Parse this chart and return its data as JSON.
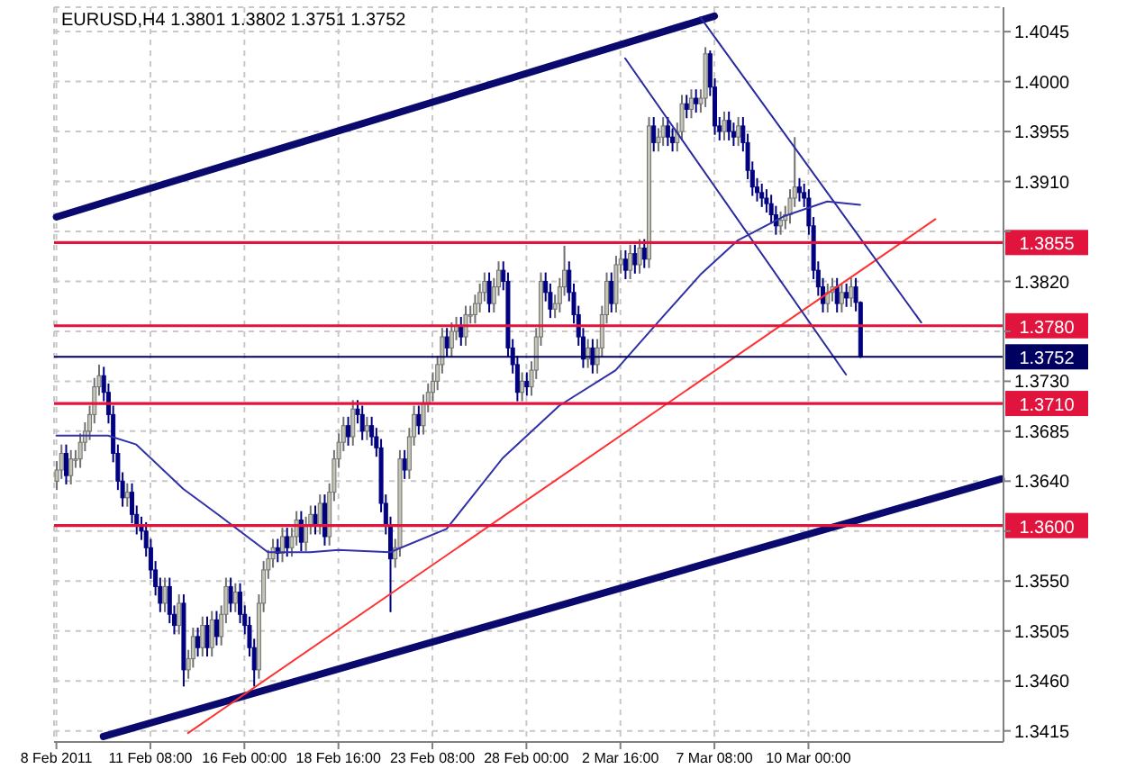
{
  "chart_data": {
    "type": "candlestick",
    "title": "EURUSD,H4 1.3801 1.3802 1.3751 1.3752",
    "categories": [
      "8 Feb 2011",
      null,
      null,
      null,
      null,
      null,
      null,
      null,
      null,
      null,
      null,
      null,
      null,
      null,
      null,
      null,
      null,
      null,
      null,
      null,
      "11 Feb 08:00",
      null,
      null,
      null,
      null,
      null,
      null,
      null,
      null,
      null,
      null,
      null,
      null,
      null,
      null,
      null,
      null,
      null,
      null,
      null,
      "16 Feb 00:00",
      null,
      null,
      null,
      null,
      null,
      null,
      null,
      null,
      null,
      null,
      null,
      null,
      null,
      null,
      null,
      null,
      null,
      null,
      null,
      "18 Feb 16:00",
      null,
      null,
      null,
      null,
      null,
      null,
      null,
      null,
      null,
      null,
      null,
      null,
      null,
      null,
      null,
      null,
      null,
      null,
      null,
      "23 Feb 08:00",
      null,
      null,
      null,
      null,
      null,
      null,
      null,
      null,
      null,
      null,
      null,
      null,
      null,
      null,
      null,
      null,
      null,
      null,
      null,
      "28 Feb 00:00",
      null,
      null,
      null,
      null,
      null,
      null,
      null,
      null,
      null,
      null,
      null,
      null,
      null,
      null,
      null,
      null,
      null,
      null,
      null,
      "2 Mar 16:00",
      null,
      null,
      null,
      null,
      null,
      null,
      null,
      null,
      null,
      null,
      null,
      null,
      null,
      null,
      null,
      null,
      null,
      null,
      null,
      "7 Mar 08:00",
      null,
      null,
      null,
      null,
      null,
      null,
      null,
      null,
      null,
      null,
      null,
      null,
      null,
      null,
      null,
      null,
      null,
      null,
      null,
      "10 Mar 00:00",
      null,
      null,
      null,
      null,
      null,
      null,
      null,
      null,
      null,
      null,
      null,
      null,
      null,
      null,
      null,
      null,
      null,
      null,
      null,
      null,
      null,
      null,
      null,
      null,
      null,
      null,
      null,
      null,
      null,
      null,
      null,
      null,
      null,
      null,
      null,
      null,
      null,
      null,
      null,
      null,
      null
    ],
    "ohlc": [
      [
        1.364,
        1.3658,
        1.3632,
        1.365
      ],
      [
        1.365,
        1.3673,
        1.3642,
        1.3665
      ],
      [
        1.3665,
        1.3673,
        1.3637,
        1.3645
      ],
      [
        1.3645,
        1.3668,
        1.3637,
        1.366
      ],
      [
        1.366,
        1.3668,
        1.3652,
        1.366
      ],
      [
        1.366,
        1.3683,
        1.3652,
        1.3675
      ],
      [
        1.3675,
        1.3693,
        1.3667,
        1.3685
      ],
      [
        1.3685,
        1.3708,
        1.3677,
        1.37
      ],
      [
        1.37,
        1.3733,
        1.3692,
        1.3725
      ],
      [
        1.3725,
        1.3745,
        1.3717,
        1.3735
      ],
      [
        1.3735,
        1.3743,
        1.3712,
        1.372
      ],
      [
        1.372,
        1.3728,
        1.3692,
        1.37
      ],
      [
        1.37,
        1.3708,
        1.3657,
        1.3665
      ],
      [
        1.3665,
        1.3673,
        1.3632,
        1.364
      ],
      [
        1.364,
        1.3648,
        1.3617,
        1.3625
      ],
      [
        1.3625,
        1.3638,
        1.3617,
        1.363
      ],
      [
        1.363,
        1.3638,
        1.3602,
        1.361
      ],
      [
        1.361,
        1.3618,
        1.3592,
        1.36
      ],
      [
        1.36,
        1.3608,
        1.3587,
        1.3595
      ],
      [
        1.3595,
        1.3603,
        1.3572,
        1.358
      ],
      [
        1.358,
        1.3588,
        1.3552,
        1.356
      ],
      [
        1.356,
        1.3568,
        1.3537,
        1.3545
      ],
      [
        1.3545,
        1.3553,
        1.3522,
        1.353
      ],
      [
        1.353,
        1.3553,
        1.3522,
        1.3545
      ],
      [
        1.3545,
        1.3553,
        1.3512,
        1.352
      ],
      [
        1.352,
        1.3528,
        1.3502,
        1.351
      ],
      [
        1.351,
        1.3538,
        1.3502,
        1.353
      ],
      [
        1.353,
        1.3538,
        1.3455,
        1.347
      ],
      [
        1.347,
        1.3488,
        1.3462,
        1.348
      ],
      [
        1.348,
        1.3508,
        1.3472,
        1.35
      ],
      [
        1.35,
        1.3508,
        1.3482,
        1.349
      ],
      [
        1.349,
        1.3518,
        1.3482,
        1.351
      ],
      [
        1.351,
        1.3518,
        1.3482,
        1.349
      ],
      [
        1.349,
        1.3523,
        1.3482,
        1.3515
      ],
      [
        1.3515,
        1.3523,
        1.3492,
        1.35
      ],
      [
        1.35,
        1.3528,
        1.3492,
        1.352
      ],
      [
        1.352,
        1.3553,
        1.3512,
        1.3545
      ],
      [
        1.3545,
        1.3553,
        1.3522,
        1.353
      ],
      [
        1.353,
        1.3548,
        1.3522,
        1.354
      ],
      [
        1.354,
        1.3548,
        1.3512,
        1.352
      ],
      [
        1.352,
        1.3528,
        1.3502,
        1.351
      ],
      [
        1.351,
        1.3518,
        1.3482,
        1.349
      ],
      [
        1.349,
        1.3498,
        1.3455,
        1.347
      ],
      [
        1.347,
        1.3538,
        1.3462,
        1.353
      ],
      [
        1.353,
        1.3568,
        1.3522,
        1.356
      ],
      [
        1.356,
        1.3578,
        1.3552,
        1.357
      ],
      [
        1.357,
        1.3588,
        1.3562,
        1.358
      ],
      [
        1.358,
        1.3588,
        1.3567,
        1.3575
      ],
      [
        1.3575,
        1.3598,
        1.3567,
        1.359
      ],
      [
        1.359,
        1.3598,
        1.3572,
        1.358
      ],
      [
        1.358,
        1.3598,
        1.3572,
        1.359
      ],
      [
        1.359,
        1.3613,
        1.3582,
        1.3605
      ],
      [
        1.3605,
        1.3613,
        1.3577,
        1.3585
      ],
      [
        1.3585,
        1.3608,
        1.3577,
        1.36
      ],
      [
        1.36,
        1.3618,
        1.3592,
        1.361
      ],
      [
        1.361,
        1.3618,
        1.3592,
        1.36
      ],
      [
        1.36,
        1.3628,
        1.3592,
        1.362
      ],
      [
        1.362,
        1.3628,
        1.3582,
        1.359
      ],
      [
        1.359,
        1.3638,
        1.3582,
        1.363
      ],
      [
        1.363,
        1.3668,
        1.3622,
        1.366
      ],
      [
        1.366,
        1.3683,
        1.3652,
        1.3675
      ],
      [
        1.3675,
        1.3698,
        1.3667,
        1.369
      ],
      [
        1.369,
        1.3698,
        1.3672,
        1.368
      ],
      [
        1.368,
        1.3713,
        1.3672,
        1.3705
      ],
      [
        1.3705,
        1.3713,
        1.3692,
        1.37
      ],
      [
        1.37,
        1.3708,
        1.3677,
        1.3685
      ],
      [
        1.3685,
        1.3698,
        1.3677,
        1.369
      ],
      [
        1.369,
        1.3698,
        1.3672,
        1.368
      ],
      [
        1.368,
        1.3688,
        1.3662,
        1.367
      ],
      [
        1.367,
        1.3678,
        1.3612,
        1.362
      ],
      [
        1.362,
        1.3628,
        1.3592,
        1.36
      ],
      [
        1.36,
        1.3608,
        1.3522,
        1.357
      ],
      [
        1.357,
        1.3588,
        1.3562,
        1.358
      ],
      [
        1.358,
        1.3668,
        1.3572,
        1.366
      ],
      [
        1.366,
        1.3668,
        1.3642,
        1.365
      ],
      [
        1.365,
        1.3688,
        1.3642,
        1.368
      ],
      [
        1.368,
        1.3708,
        1.3672,
        1.37
      ],
      [
        1.37,
        1.3708,
        1.3682,
        1.369
      ],
      [
        1.369,
        1.3718,
        1.3682,
        1.371
      ],
      [
        1.371,
        1.3728,
        1.3702,
        1.372
      ],
      [
        1.372,
        1.3738,
        1.3712,
        1.373
      ],
      [
        1.373,
        1.3753,
        1.3722,
        1.3745
      ],
      [
        1.3745,
        1.3778,
        1.3737,
        1.377
      ],
      [
        1.377,
        1.3778,
        1.3752,
        1.376
      ],
      [
        1.376,
        1.3783,
        1.3752,
        1.3775
      ],
      [
        1.3775,
        1.3788,
        1.3767,
        1.378
      ],
      [
        1.378,
        1.3788,
        1.3762,
        1.377
      ],
      [
        1.377,
        1.3798,
        1.3762,
        1.379
      ],
      [
        1.379,
        1.3798,
        1.3782,
        1.379
      ],
      [
        1.379,
        1.3808,
        1.3782,
        1.38
      ],
      [
        1.38,
        1.3818,
        1.3792,
        1.381
      ],
      [
        1.381,
        1.3828,
        1.3802,
        1.382
      ],
      [
        1.382,
        1.3828,
        1.3792,
        1.38
      ],
      [
        1.38,
        1.3823,
        1.3792,
        1.3815
      ],
      [
        1.3815,
        1.3838,
        1.3807,
        1.383
      ],
      [
        1.383,
        1.3838,
        1.3812,
        1.382
      ],
      [
        1.382,
        1.3828,
        1.3752,
        1.376
      ],
      [
        1.376,
        1.3768,
        1.3737,
        1.3745
      ],
      [
        1.3745,
        1.3753,
        1.3712,
        1.372
      ],
      [
        1.372,
        1.3738,
        1.3712,
        1.373
      ],
      [
        1.373,
        1.3738,
        1.3717,
        1.3725
      ],
      [
        1.3725,
        1.3748,
        1.3717,
        1.374
      ],
      [
        1.374,
        1.3778,
        1.3732,
        1.377
      ],
      [
        1.377,
        1.3828,
        1.3762,
        1.382
      ],
      [
        1.382,
        1.3828,
        1.3802,
        1.381
      ],
      [
        1.381,
        1.3818,
        1.3787,
        1.3795
      ],
      [
        1.3795,
        1.3808,
        1.3787,
        1.38
      ],
      [
        1.38,
        1.3823,
        1.3792,
        1.3815
      ],
      [
        1.3815,
        1.3852,
        1.3807,
        1.383
      ],
      [
        1.383,
        1.3838,
        1.3802,
        1.381
      ],
      [
        1.381,
        1.3818,
        1.3782,
        1.379
      ],
      [
        1.379,
        1.3798,
        1.3762,
        1.377
      ],
      [
        1.377,
        1.3778,
        1.3742,
        1.375
      ],
      [
        1.375,
        1.3768,
        1.3742,
        1.376
      ],
      [
        1.376,
        1.3768,
        1.3737,
        1.3745
      ],
      [
        1.3745,
        1.3768,
        1.3737,
        1.376
      ],
      [
        1.376,
        1.3798,
        1.3752,
        1.379
      ],
      [
        1.379,
        1.3828,
        1.3782,
        1.382
      ],
      [
        1.382,
        1.3828,
        1.3792,
        1.38
      ],
      [
        1.38,
        1.3843,
        1.3792,
        1.3835
      ],
      [
        1.3835,
        1.3848,
        1.3827,
        1.384
      ],
      [
        1.384,
        1.3848,
        1.3822,
        1.383
      ],
      [
        1.383,
        1.3853,
        1.3822,
        1.3845
      ],
      [
        1.3845,
        1.3853,
        1.3827,
        1.3835
      ],
      [
        1.3835,
        1.3858,
        1.3827,
        1.385
      ],
      [
        1.385,
        1.3858,
        1.3832,
        1.384
      ],
      [
        1.384,
        1.3968,
        1.3832,
        1.396
      ],
      [
        1.396,
        1.3968,
        1.3937,
        1.3945
      ],
      [
        1.3945,
        1.3958,
        1.3937,
        1.395
      ],
      [
        1.395,
        1.3968,
        1.3942,
        1.396
      ],
      [
        1.396,
        1.3968,
        1.3942,
        1.395
      ],
      [
        1.395,
        1.3958,
        1.3937,
        1.3945
      ],
      [
        1.3945,
        1.3963,
        1.3937,
        1.3955
      ],
      [
        1.3955,
        1.3988,
        1.3947,
        1.398
      ],
      [
        1.398,
        1.3988,
        1.3967,
        1.3975
      ],
      [
        1.3975,
        1.3993,
        1.3967,
        1.3985
      ],
      [
        1.3985,
        1.3993,
        1.3972,
        1.398
      ],
      [
        1.398,
        1.3993,
        1.3972,
        1.3985
      ],
      [
        1.3985,
        1.4031,
        1.3977,
        1.4025
      ],
      [
        1.4025,
        1.4028,
        1.3987,
        1.3995
      ],
      [
        1.3995,
        1.4003,
        1.3952,
        1.396
      ],
      [
        1.396,
        1.3968,
        1.3947,
        1.3955
      ],
      [
        1.3955,
        1.3973,
        1.3947,
        1.3965
      ],
      [
        1.3965,
        1.3973,
        1.3947,
        1.3955
      ],
      [
        1.3955,
        1.3963,
        1.3942,
        1.395
      ],
      [
        1.395,
        1.3968,
        1.3942,
        1.396
      ],
      [
        1.396,
        1.3968,
        1.3937,
        1.3945
      ],
      [
        1.3945,
        1.3953,
        1.3912,
        1.392
      ],
      [
        1.392,
        1.3928,
        1.3897,
        1.3905
      ],
      [
        1.3905,
        1.3913,
        1.3892,
        1.39
      ],
      [
        1.39,
        1.3908,
        1.3887,
        1.3895
      ],
      [
        1.3895,
        1.3903,
        1.3882,
        1.389
      ],
      [
        1.389,
        1.3898,
        1.3872,
        1.388
      ],
      [
        1.388,
        1.3888,
        1.3862,
        1.387
      ],
      [
        1.387,
        1.3883,
        1.3862,
        1.3875
      ],
      [
        1.3875,
        1.3888,
        1.3867,
        1.388
      ],
      [
        1.388,
        1.3903,
        1.3872,
        1.3895
      ],
      [
        1.3895,
        1.395,
        1.3887,
        1.3905
      ],
      [
        1.3905,
        1.3913,
        1.3892,
        1.39
      ],
      [
        1.39,
        1.3908,
        1.3887,
        1.3895
      ],
      [
        1.3895,
        1.3903,
        1.3862,
        1.387
      ],
      [
        1.387,
        1.3878,
        1.3822,
        1.383
      ],
      [
        1.383,
        1.3838,
        1.3807,
        1.3815
      ],
      [
        1.3815,
        1.3823,
        1.3792,
        1.38
      ],
      [
        1.38,
        1.3818,
        1.3792,
        1.381
      ],
      [
        1.381,
        1.3823,
        1.3802,
        1.3815
      ],
      [
        1.3815,
        1.3823,
        1.3792,
        1.38
      ],
      [
        1.38,
        1.3818,
        1.3792,
        1.381
      ],
      [
        1.381,
        1.3818,
        1.3797,
        1.3805
      ],
      [
        1.3805,
        1.3823,
        1.3797,
        1.3815
      ],
      [
        1.3815,
        1.3823,
        1.3793,
        1.3801
      ],
      [
        1.3801,
        1.3802,
        1.3751,
        1.3752
      ],
      null,
      null,
      null,
      null,
      null,
      null,
      null,
      null,
      null,
      null,
      null,
      null,
      null,
      null,
      null,
      null,
      null,
      null,
      null,
      null,
      null,
      null,
      null,
      null,
      null,
      null,
      null,
      null,
      null,
      null
    ],
    "series": [
      {
        "type": "line",
        "color": "#0a0a6e",
        "values": [
          1.3878,
          null,
          null,
          null,
          null,
          null,
          null,
          null,
          null,
          null,
          null,
          null,
          null,
          null,
          null,
          null,
          null,
          null,
          null,
          null,
          null,
          null,
          null,
          null,
          null,
          null,
          null,
          null,
          null,
          null,
          null,
          null,
          null,
          null,
          null,
          null,
          null,
          null,
          null,
          null,
          null,
          null,
          null,
          null,
          null,
          null,
          null,
          null,
          null,
          null,
          null,
          null,
          null,
          null,
          null,
          null,
          null,
          null,
          null,
          null,
          null,
          null,
          null,
          null,
          null,
          null,
          null,
          null,
          null,
          null,
          null,
          null,
          null,
          null,
          null,
          null,
          null,
          null,
          null,
          null,
          null,
          null,
          null,
          null,
          null,
          null,
          null,
          null,
          null,
          null,
          null,
          null,
          null,
          null,
          null,
          null,
          null,
          null,
          null,
          null,
          null,
          null,
          null,
          null,
          null,
          null,
          null,
          null,
          null,
          null,
          null,
          null,
          null,
          null,
          null,
          null,
          null,
          null,
          null,
          null,
          null,
          null,
          null,
          null,
          null,
          null,
          null,
          null,
          null,
          null,
          null,
          null,
          null,
          null,
          null,
          null,
          null,
          null,
          null,
          null,
          1.4059,
          null,
          null,
          null,
          null,
          null,
          null,
          null,
          null,
          null,
          null,
          null,
          null,
          null,
          null,
          null,
          null,
          null,
          null,
          null,
          null,
          null,
          null,
          null,
          null,
          null,
          null,
          null,
          null,
          null,
          null,
          null,
          null,
          null,
          null,
          null,
          null,
          null,
          null,
          null,
          null,
          null,
          null,
          null,
          null,
          null,
          null,
          null,
          null,
          null,
          null,
          null,
          null,
          null,
          null,
          null,
          null,
          null,
          null,
          null,
          null,
          null
        ]
      },
      {
        "type": "line",
        "color": "#0a0a6e",
        "values": [
          null,
          null,
          null,
          null,
          null,
          null,
          null,
          null,
          null,
          null,
          1.341,
          null,
          null,
          null,
          null,
          null,
          null,
          null,
          null,
          null,
          null,
          null,
          null,
          null,
          null,
          null,
          null,
          null,
          null,
          null,
          null,
          null,
          null,
          null,
          null,
          null,
          null,
          null,
          null,
          null,
          null,
          null,
          null,
          null,
          null,
          null,
          null,
          null,
          null,
          null,
          null,
          null,
          null,
          null,
          null,
          null,
          null,
          null,
          null,
          null,
          null,
          null,
          null,
          null,
          null,
          null,
          null,
          null,
          null,
          null,
          null,
          null,
          null,
          null,
          null,
          null,
          null,
          null,
          null,
          null,
          null,
          null,
          null,
          null,
          null,
          null,
          null,
          null,
          null,
          null,
          null,
          null,
          null,
          null,
          null,
          null,
          null,
          null,
          null,
          null,
          null,
          null,
          null,
          null,
          null,
          null,
          null,
          null,
          null,
          null,
          null,
          null,
          null,
          null,
          null,
          null,
          null,
          null,
          null,
          null,
          null,
          null,
          null,
          null,
          null,
          null,
          null,
          null,
          null,
          null,
          null,
          null,
          null,
          null,
          null,
          null,
          null,
          null,
          null,
          null,
          null,
          null,
          null,
          null,
          null,
          null,
          null,
          null,
          null,
          null,
          null,
          null,
          null,
          null,
          null,
          null,
          null,
          null,
          null,
          null,
          null,
          null,
          null,
          null,
          null,
          null,
          null,
          null,
          null,
          null,
          null,
          null,
          null,
          null,
          null,
          null,
          null,
          null,
          null,
          null,
          null,
          null,
          null,
          null,
          null,
          null,
          null,
          null,
          null,
          null,
          null,
          null,
          null,
          null,
          null,
          null,
          null,
          null,
          null,
          null,
          null,
          1.3642
        ]
      },
      {
        "type": "line",
        "color": "#ff3030",
        "values": [
          null,
          null,
          null,
          null,
          null,
          null,
          null,
          null,
          null,
          null,
          null,
          null,
          null,
          null,
          null,
          null,
          null,
          null,
          null,
          null,
          null,
          null,
          null,
          null,
          null,
          null,
          null,
          null,
          1.3413,
          null,
          null,
          null,
          null,
          null,
          null,
          null,
          null,
          null,
          null,
          null,
          null,
          null,
          null,
          null,
          null,
          null,
          null,
          null,
          null,
          null,
          null,
          null,
          null,
          null,
          null,
          null,
          null,
          null,
          null,
          null,
          null,
          null,
          null,
          null,
          null,
          null,
          null,
          null,
          null,
          null,
          null,
          null,
          null,
          null,
          null,
          null,
          null,
          null,
          null,
          null,
          null,
          null,
          null,
          null,
          null,
          null,
          null,
          null,
          null,
          null,
          null,
          null,
          null,
          null,
          null,
          null,
          null,
          null,
          null,
          null,
          null,
          null,
          null,
          null,
          null,
          null,
          null,
          null,
          null,
          null,
          null,
          null,
          null,
          null,
          null,
          null,
          null,
          null,
          null,
          null,
          null,
          null,
          null,
          null,
          null,
          null,
          null,
          null,
          null,
          null,
          null,
          null,
          null,
          null,
          null,
          null,
          null,
          null,
          null,
          null,
          null,
          null,
          null,
          null,
          null,
          null,
          null,
          null,
          null,
          null,
          null,
          null,
          null,
          null,
          null,
          null,
          null,
          null,
          null,
          null,
          null,
          null,
          null,
          null,
          null,
          null,
          null,
          null,
          null,
          null,
          null,
          null,
          null,
          null,
          null,
          null,
          null,
          null,
          null,
          null,
          null,
          null,
          null,
          null,
          null,
          null,
          null,
          1.3876,
          null,
          null,
          null,
          null,
          null,
          null,
          null,
          null,
          null,
          null,
          null,
          null,
          null,
          null
        ]
      },
      {
        "type": "line",
        "color": "#2a2aa0",
        "values": [
          null,
          null,
          null,
          null,
          null,
          null,
          null,
          null,
          null,
          null,
          null,
          null,
          null,
          null,
          null,
          null,
          null,
          null,
          null,
          null,
          null,
          null,
          null,
          null,
          null,
          null,
          null,
          null,
          null,
          null,
          null,
          null,
          null,
          null,
          null,
          null,
          null,
          null,
          null,
          null,
          null,
          null,
          null,
          null,
          null,
          null,
          null,
          null,
          null,
          null,
          null,
          null,
          null,
          null,
          null,
          null,
          null,
          null,
          null,
          null,
          null,
          null,
          null,
          null,
          null,
          null,
          null,
          null,
          null,
          null,
          null,
          null,
          null,
          null,
          null,
          null,
          null,
          null,
          null,
          null,
          null,
          null,
          null,
          null,
          null,
          null,
          null,
          null,
          null,
          null,
          null,
          null,
          null,
          null,
          null,
          null,
          null,
          null,
          null,
          null,
          null,
          null,
          null,
          null,
          null,
          null,
          null,
          null,
          null,
          null,
          null,
          null,
          null,
          null,
          null,
          null,
          null,
          null,
          null,
          null,
          null,
          1.4021,
          null,
          null,
          null,
          null,
          null,
          null,
          null,
          null,
          null,
          null,
          null,
          null,
          null,
          null,
          null,
          null,
          null,
          null,
          null,
          null,
          null,
          null,
          null,
          null,
          null,
          null,
          null,
          null,
          null,
          null,
          null,
          null,
          null,
          null,
          null,
          null,
          null,
          null,
          null,
          null,
          null,
          null,
          null,
          null,
          null,
          null,
          1.3736,
          null,
          null,
          null,
          null,
          null,
          null,
          null,
          null,
          null,
          null,
          null,
          null,
          null,
          null,
          null,
          null,
          null,
          null,
          null,
          null,
          null,
          null,
          null,
          null,
          null,
          null,
          null,
          null,
          null,
          null,
          null,
          null,
          null
        ]
      },
      {
        "type": "line",
        "color": "#2a2aa0",
        "values": [
          null,
          null,
          null,
          null,
          null,
          null,
          null,
          null,
          null,
          null,
          null,
          null,
          null,
          null,
          null,
          null,
          null,
          null,
          null,
          null,
          null,
          null,
          null,
          null,
          null,
          null,
          null,
          null,
          null,
          null,
          null,
          null,
          null,
          null,
          null,
          null,
          null,
          null,
          null,
          null,
          null,
          null,
          null,
          null,
          null,
          null,
          null,
          null,
          null,
          null,
          null,
          null,
          null,
          null,
          null,
          null,
          null,
          null,
          null,
          null,
          null,
          null,
          null,
          null,
          null,
          null,
          null,
          null,
          null,
          null,
          null,
          null,
          null,
          null,
          null,
          null,
          null,
          null,
          null,
          null,
          null,
          null,
          null,
          null,
          null,
          null,
          null,
          null,
          null,
          null,
          null,
          null,
          null,
          null,
          null,
          null,
          null,
          null,
          null,
          null,
          null,
          null,
          null,
          null,
          null,
          null,
          null,
          null,
          null,
          null,
          null,
          null,
          null,
          null,
          null,
          null,
          null,
          null,
          null,
          null,
          null,
          null,
          null,
          null,
          null,
          null,
          null,
          null,
          null,
          null,
          null,
          null,
          null,
          null,
          null,
          null,
          null,
          1.4058,
          null,
          null,
          null,
          null,
          null,
          null,
          null,
          null,
          null,
          null,
          null,
          null,
          null,
          null,
          null,
          null,
          null,
          null,
          null,
          null,
          null,
          null,
          null,
          null,
          null,
          null,
          null,
          null,
          null,
          null,
          null,
          null,
          null,
          null,
          null,
          null,
          null,
          null,
          null,
          null,
          null,
          null,
          null,
          null,
          null,
          null,
          1.3783,
          null,
          null,
          null,
          null,
          null,
          null,
          null,
          null,
          null,
          null,
          null,
          null,
          null,
          null,
          null,
          null,
          null
        ]
      },
      {
        "type": "line",
        "color": "#3030a8",
        "values": [
          1.3681,
          null,
          null,
          null,
          null,
          null,
          null,
          null,
          null,
          null,
          null,
          1.3681,
          null,
          null,
          null,
          null,
          null,
          1.3673,
          null,
          null,
          null,
          null,
          null,
          null,
          null,
          null,
          null,
          1.3633,
          null,
          null,
          null,
          null,
          null,
          null,
          null,
          1.3608,
          null,
          null,
          null,
          null,
          null,
          null,
          null,
          null,
          null,
          1.3576,
          null,
          null,
          null,
          null,
          null,
          null,
          null,
          null,
          1.3576,
          null,
          null,
          null,
          null,
          null,
          1.3578,
          null,
          null,
          null,
          null,
          null,
          null,
          null,
          null,
          null,
          null,
          1.3576,
          null,
          null,
          null,
          null,
          null,
          null,
          null,
          null,
          null,
          null,
          null,
          1.3597,
          null,
          null,
          null,
          null,
          null,
          null,
          null,
          null,
          null,
          null,
          null,
          1.3661,
          null,
          null,
          null,
          null,
          null,
          null,
          null,
          null,
          null,
          null,
          null,
          1.3708,
          null,
          null,
          null,
          null,
          null,
          null,
          null,
          null,
          null,
          null,
          null,
          1.374,
          null,
          null,
          null,
          null,
          null,
          null,
          null,
          null,
          null,
          1.3788,
          null,
          null,
          null,
          null,
          null,
          null,
          null,
          1.3826,
          null,
          null,
          null,
          null,
          null,
          null,
          null,
          1.3857,
          null,
          null,
          null,
          null,
          null,
          null,
          null,
          null,
          null,
          1.3879,
          null,
          null,
          null,
          null,
          null,
          null,
          null,
          null,
          1.3892,
          null,
          null,
          null,
          null,
          null,
          null,
          1.3889,
          null,
          null,
          null,
          null,
          null,
          null,
          null,
          null,
          null,
          null,
          null,
          null,
          null,
          null,
          null,
          null,
          null,
          null,
          null,
          null,
          null,
          null,
          null,
          null,
          null,
          null,
          null,
          null,
          null,
          null
        ]
      }
    ],
    "ylim": [
      1.3405,
      1.4067
    ],
    "yticks": [
      1.4045,
      {
        "value": 1.4,
        "label": "1.4000"
      },
      1.3955,
      {
        "value": 1.391,
        "label": "1.3910"
      },
      {
        "value": 1.3865,
        "label": null
      },
      {
        "value": 1.382,
        "label": "1.3820"
      },
      {
        "value": 1.3775,
        "label": null
      },
      {
        "value": 1.373,
        "label": "1.3730"
      },
      1.3685,
      {
        "value": 1.364,
        "label": "1.3640"
      },
      {
        "value": 1.3595,
        "label": null
      },
      {
        "value": 1.355,
        "label": "1.3550"
      },
      1.3505,
      {
        "value": 1.346,
        "label": "1.3460"
      },
      1.3415
    ],
    "grid": true,
    "ref_lines": [
      {
        "axis": "y",
        "value": 1.3855,
        "label": "1.3855",
        "color": "#e0143c"
      },
      {
        "axis": "y",
        "value": 1.378,
        "label": "1.3780",
        "color": "#e0143c"
      },
      {
        "axis": "y",
        "value": 1.3752,
        "label": "1.3752",
        "color": "#000060"
      },
      {
        "axis": "y",
        "value": 1.371,
        "label": "1.3710",
        "color": "#e0143c"
      },
      {
        "axis": "y",
        "value": 1.36,
        "label": "1.3600",
        "color": "#e0143c"
      }
    ]
  }
}
